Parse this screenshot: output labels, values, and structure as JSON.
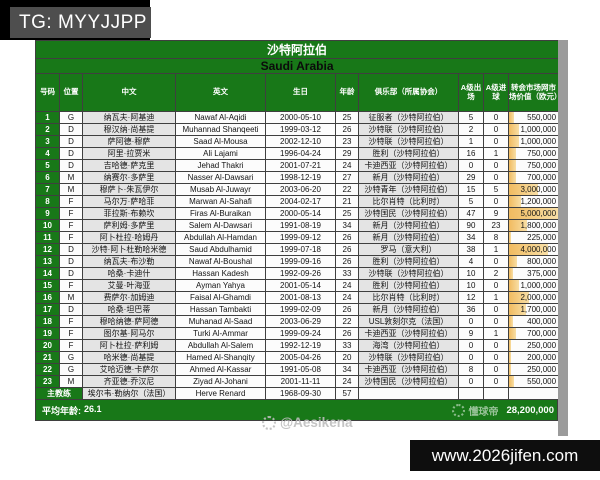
{
  "overlay": {
    "tg_badge": "TG: MYYJJPP",
    "handle_watermark": "@Aesikena",
    "logo_watermark": "懂球帝",
    "site_bar": "www.2026jifen.com"
  },
  "colors": {
    "green": "#187818",
    "barstart": "#f1bb60",
    "barend": "#f8dfa6"
  },
  "table": {
    "title_cn": "沙特阿拉伯",
    "title_en": "Saudi Arabia",
    "columns": [
      "号码",
      "位置",
      "中文",
      "英文",
      "生日",
      "年龄",
      "俱乐部（所属协会）",
      "A级出场",
      "A级进球",
      "转会市场网市场价值（欧元）"
    ],
    "value_bar_max": 5000000,
    "players": [
      {
        "no": "1",
        "pos": "G",
        "cn": "纳瓦夫·阿基迪",
        "en": "Nawaf Al-Aqidi",
        "dob": "2000-05-10",
        "age": "25",
        "club": "征服者（沙特阿拉伯）",
        "caps": "5",
        "goals": "0",
        "value": "550,000"
      },
      {
        "no": "2",
        "pos": "D",
        "cn": "穆汉纳·尚基提",
        "en": "Muhannad Shanqeeti",
        "dob": "1999-03-12",
        "age": "26",
        "club": "沙特联（沙特阿拉伯）",
        "caps": "2",
        "goals": "0",
        "value": "1,000,000"
      },
      {
        "no": "3",
        "pos": "D",
        "cn": "萨阿德·穆萨",
        "en": "Saad Al-Mousa",
        "dob": "2002-12-10",
        "age": "23",
        "club": "沙特联（沙特阿拉伯）",
        "caps": "1",
        "goals": "0",
        "value": "1,000,000"
      },
      {
        "no": "4",
        "pos": "D",
        "cn": "阿里·拉贾米",
        "en": "Ali Lajami",
        "dob": "1996-04-24",
        "age": "29",
        "club": "胜利（沙特阿拉伯）",
        "caps": "16",
        "goals": "1",
        "value": "750,000"
      },
      {
        "no": "5",
        "pos": "D",
        "cn": "吉哈德·萨克里",
        "en": "Jehad Thakri",
        "dob": "2001-07-21",
        "age": "24",
        "club": "卡迪西亚（沙特阿拉伯）",
        "caps": "0",
        "goals": "0",
        "value": "750,000"
      },
      {
        "no": "6",
        "pos": "M",
        "cn": "纳赛尔·多萨里",
        "en": "Nasser Al-Dawsari",
        "dob": "1998-12-19",
        "age": "27",
        "club": "新月（沙特阿拉伯）",
        "caps": "29",
        "goals": "0",
        "value": "700,000"
      },
      {
        "no": "7",
        "pos": "M",
        "cn": "穆萨卜·朱瓦伊尔",
        "en": "Musab Al-Juwayr",
        "dob": "2003-06-20",
        "age": "22",
        "club": "沙特青年（沙特阿拉伯）",
        "caps": "15",
        "goals": "5",
        "value": "3,000,000"
      },
      {
        "no": "8",
        "pos": "F",
        "cn": "马尔万·萨哈菲",
        "en": "Marwan Al-Sahafi",
        "dob": "2004-02-17",
        "age": "21",
        "club": "比尔肖特（比利时）",
        "caps": "5",
        "goals": "0",
        "value": "1,200,000"
      },
      {
        "no": "9",
        "pos": "F",
        "cn": "菲拉斯·布赖坎",
        "en": "Firas Al-Buraikan",
        "dob": "2000-05-14",
        "age": "25",
        "club": "沙特国民（沙特阿拉伯）",
        "caps": "47",
        "goals": "9",
        "value": "5,000,000"
      },
      {
        "no": "10",
        "pos": "F",
        "cn": "萨利姆·多萨里",
        "en": "Salem Al-Dawsari",
        "dob": "1991-08-19",
        "age": "34",
        "club": "新月（沙特阿拉伯）",
        "caps": "90",
        "goals": "23",
        "value": "1,800,000"
      },
      {
        "no": "11",
        "pos": "F",
        "cn": "阿卜杜拉·哈姆丹",
        "en": "Abdullah Al-Hamdan",
        "dob": "1999-09-12",
        "age": "26",
        "club": "新月（沙特阿拉伯）",
        "caps": "34",
        "goals": "8",
        "value": "225,000"
      },
      {
        "no": "12",
        "pos": "D",
        "cn": "沙特·阿卜杜勒哈米德",
        "en": "Saud Abdulhamid",
        "dob": "1999-07-18",
        "age": "26",
        "club": "罗马（意大利）",
        "caps": "38",
        "goals": "1",
        "value": "4,000,000"
      },
      {
        "no": "13",
        "pos": "D",
        "cn": "纳瓦夫·布沙勒",
        "en": "Nawaf Al-Boushal",
        "dob": "1999-09-16",
        "age": "26",
        "club": "胜利（沙特阿拉伯）",
        "caps": "4",
        "goals": "0",
        "value": "800,000"
      },
      {
        "no": "14",
        "pos": "D",
        "cn": "哈桑·卡迪什",
        "en": "Hassan Kadesh",
        "dob": "1992-09-26",
        "age": "33",
        "club": "沙特联（沙特阿拉伯）",
        "caps": "10",
        "goals": "2",
        "value": "375,000"
      },
      {
        "no": "15",
        "pos": "F",
        "cn": "艾曼·叶海亚",
        "en": "Ayman Yahya",
        "dob": "2001-05-14",
        "age": "24",
        "club": "胜利（沙特阿拉伯）",
        "caps": "10",
        "goals": "0",
        "value": "1,000,000"
      },
      {
        "no": "16",
        "pos": "M",
        "cn": "费萨尔·加姆迪",
        "en": "Faisal Al-Ghamdi",
        "dob": "2001-08-13",
        "age": "24",
        "club": "比尔肖特（比利时）",
        "caps": "12",
        "goals": "1",
        "value": "2,000,000"
      },
      {
        "no": "17",
        "pos": "D",
        "cn": "哈桑·坦巴蒂",
        "en": "Hassan Tambakti",
        "dob": "1999-02-09",
        "age": "26",
        "club": "新月（沙特阿拉伯）",
        "caps": "36",
        "goals": "0",
        "value": "1,700,000"
      },
      {
        "no": "18",
        "pos": "F",
        "cn": "穆哈纳德·萨阿德",
        "en": "Muhanad Al-Saad",
        "dob": "2003-06-29",
        "age": "22",
        "club": "USL敦刻尔克（法国）",
        "caps": "0",
        "goals": "0",
        "value": "400,000"
      },
      {
        "no": "19",
        "pos": "F",
        "cn": "图尔基·阿马尔",
        "en": "Turki Al-Ammar",
        "dob": "1999-09-24",
        "age": "26",
        "club": "卡迪西亚（沙特阿拉伯）",
        "caps": "9",
        "goals": "1",
        "value": "700,000"
      },
      {
        "no": "20",
        "pos": "F",
        "cn": "阿卜杜拉·萨利姆",
        "en": "Abdullah Al-Salem",
        "dob": "1992-12-19",
        "age": "33",
        "club": "海湾（沙特阿拉伯）",
        "caps": "0",
        "goals": "0",
        "value": "250,000"
      },
      {
        "no": "21",
        "pos": "G",
        "cn": "哈米德·尚基提",
        "en": "Hamed Al-Shanqity",
        "dob": "2005-04-26",
        "age": "20",
        "club": "沙特联（沙特阿拉伯）",
        "caps": "0",
        "goals": "0",
        "value": "200,000"
      },
      {
        "no": "22",
        "pos": "G",
        "cn": "艾哈迈德·卡萨尔",
        "en": "Ahmed Al-Kassar",
        "dob": "1991-05-08",
        "age": "34",
        "club": "卡迪西亚（沙特阿拉伯）",
        "caps": "8",
        "goals": "0",
        "value": "250,000"
      },
      {
        "no": "23",
        "pos": "M",
        "cn": "齐亚德·乔汉尼",
        "en": "Ziyad Al-Johani",
        "dob": "2001-11-11",
        "age": "24",
        "club": "沙特国民（沙特阿拉伯）",
        "caps": "0",
        "goals": "0",
        "value": "550,000"
      }
    ],
    "coach": {
      "label": "主教练",
      "cn": "埃尔韦·勒纳尔（法国）",
      "en": "Herve Renard",
      "dob": "1968-09-30",
      "age": "57"
    },
    "footer": {
      "avg_label": "平均年龄:",
      "avg_value": "26.1",
      "total_value": "28,200,000"
    }
  }
}
